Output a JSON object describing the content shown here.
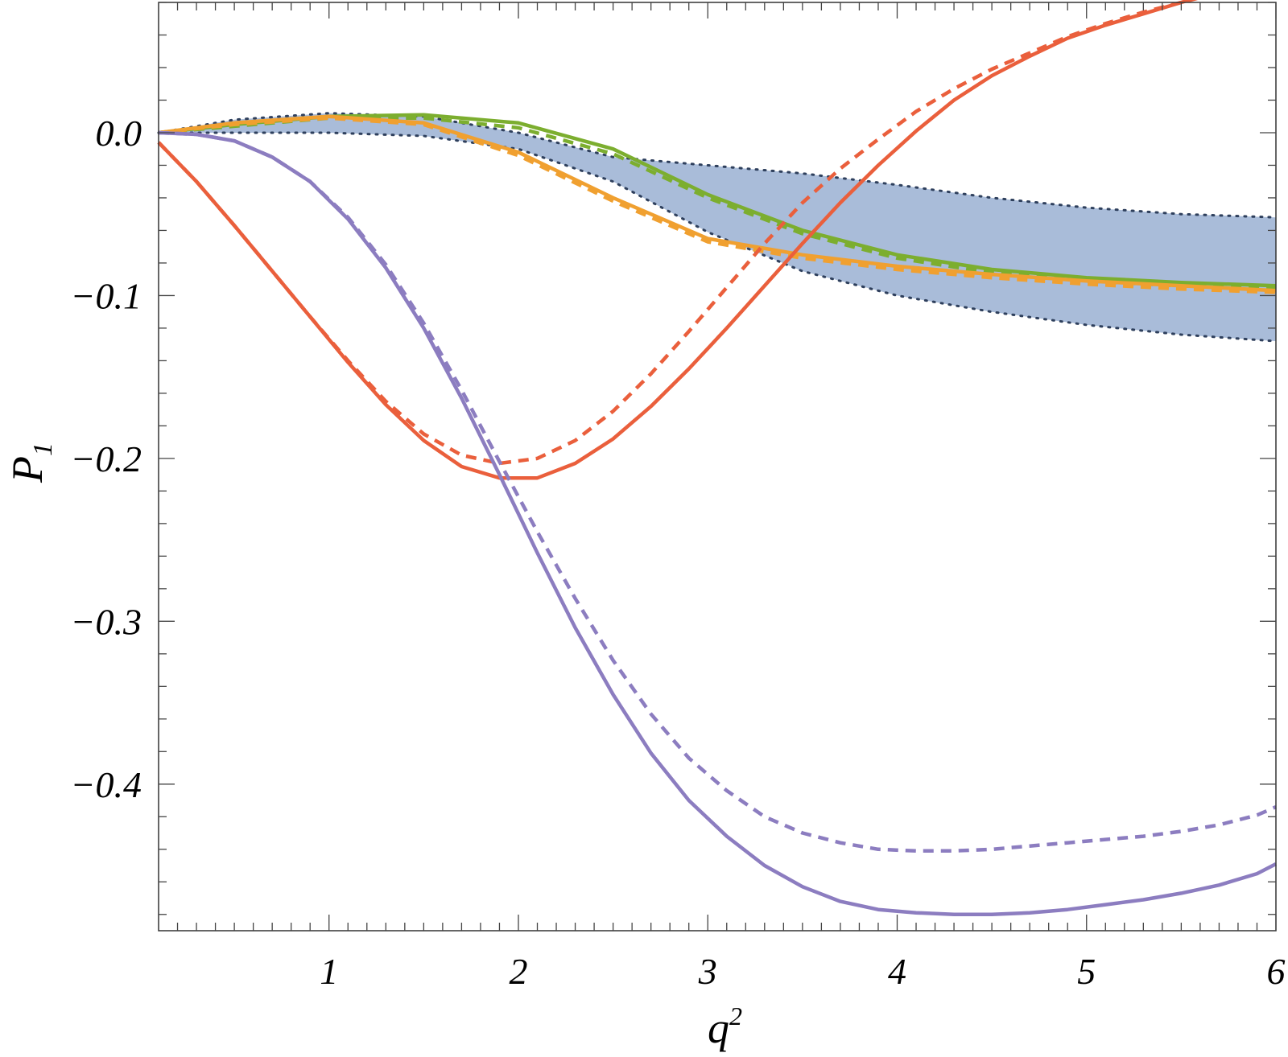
{
  "chart_data": {
    "type": "line",
    "xlabel": "q",
    "xlabel_sup": "2",
    "ylabel": "P",
    "ylabel_sub": "1",
    "xlim": [
      0.1,
      6
    ],
    "ylim": [
      -0.49,
      0.08
    ],
    "x_ticks": [
      1,
      2,
      3,
      4,
      5,
      6
    ],
    "x_tick_labels": [
      "1",
      "2",
      "3",
      "4",
      "5",
      "6"
    ],
    "y_ticks": [
      0.0,
      -0.1,
      -0.2,
      -0.3,
      -0.4
    ],
    "y_tick_labels": [
      "0.0",
      "−0.1",
      "−0.2",
      "−0.3",
      "−0.4"
    ],
    "grid": false,
    "band": {
      "color": "#a9bcd9",
      "edge_color": "#2e3f5c",
      "x": [
        0.1,
        0.5,
        1.0,
        1.5,
        2.0,
        2.5,
        3.0,
        3.5,
        4.0,
        4.5,
        5.0,
        5.5,
        6.0
      ],
      "lower": [
        0.0,
        0.0,
        0.0,
        -0.002,
        -0.01,
        -0.03,
        -0.061,
        -0.085,
        -0.1,
        -0.11,
        -0.118,
        -0.124,
        -0.128
      ],
      "upper": [
        0.0,
        0.008,
        0.012,
        0.01,
        0.0,
        -0.015,
        -0.02,
        -0.025,
        -0.032,
        -0.04,
        -0.046,
        -0.05,
        -0.052
      ]
    },
    "series": [
      {
        "color": "#7cae2f",
        "dash": "solid",
        "x": [
          0.1,
          0.5,
          1.0,
          1.5,
          2.0,
          2.5,
          3.0,
          3.5,
          4.0,
          4.5,
          5.0,
          5.5,
          6.0
        ],
        "y": [
          0.0,
          0.005,
          0.01,
          0.011,
          0.006,
          -0.01,
          -0.038,
          -0.06,
          -0.075,
          -0.084,
          -0.089,
          -0.092,
          -0.094
        ]
      },
      {
        "color": "#7cae2f",
        "dash": "dashed",
        "x": [
          0.1,
          0.5,
          1.0,
          1.5,
          2.0,
          2.5,
          3.0,
          3.5,
          4.0,
          4.5,
          5.0,
          5.5,
          6.0
        ],
        "y": [
          0.0,
          0.004,
          0.009,
          0.009,
          0.003,
          -0.013,
          -0.04,
          -0.062,
          -0.077,
          -0.086,
          -0.091,
          -0.094,
          -0.096
        ]
      },
      {
        "color": "#f0a030",
        "dash": "solid",
        "x": [
          0.1,
          0.5,
          1.0,
          1.5,
          2.0,
          2.5,
          3.0,
          3.5,
          4.0,
          4.5,
          5.0,
          5.5,
          6.0
        ],
        "y": [
          0.0,
          0.006,
          0.01,
          0.006,
          -0.012,
          -0.04,
          -0.065,
          -0.075,
          -0.082,
          -0.087,
          -0.091,
          -0.094,
          -0.097
        ]
      },
      {
        "color": "#f0a030",
        "dash": "dashed",
        "x": [
          0.1,
          0.5,
          1.0,
          1.5,
          2.0,
          2.5,
          3.0,
          3.5,
          4.0,
          4.5,
          5.0,
          5.5,
          6.0
        ],
        "y": [
          0.0,
          0.005,
          0.009,
          0.005,
          -0.014,
          -0.042,
          -0.067,
          -0.077,
          -0.084,
          -0.089,
          -0.093,
          -0.096,
          -0.098
        ]
      },
      {
        "color": "#ea5f3c",
        "dash": "solid",
        "x": [
          0.1,
          0.3,
          0.5,
          0.7,
          0.9,
          1.1,
          1.3,
          1.5,
          1.7,
          1.9,
          2.1,
          2.3,
          2.5,
          2.7,
          2.9,
          3.1,
          3.3,
          3.5,
          3.7,
          3.9,
          4.1,
          4.3,
          4.5,
          4.7,
          4.9,
          5.1,
          5.3,
          5.5,
          5.7,
          6.0
        ],
        "y": [
          -0.006,
          -0.03,
          -0.057,
          -0.085,
          -0.113,
          -0.141,
          -0.167,
          -0.189,
          -0.205,
          -0.212,
          -0.212,
          -0.203,
          -0.188,
          -0.168,
          -0.145,
          -0.12,
          -0.094,
          -0.068,
          -0.043,
          -0.02,
          0.001,
          0.02,
          0.035,
          0.047,
          0.058,
          0.066,
          0.073,
          0.08,
          0.087,
          0.092
        ]
      },
      {
        "color": "#ea5f3c",
        "dash": "dashed",
        "x": [
          0.1,
          0.3,
          0.5,
          0.7,
          0.9,
          1.1,
          1.3,
          1.5,
          1.7,
          1.9,
          2.1,
          2.3,
          2.5,
          2.7,
          2.9,
          3.1,
          3.3,
          3.5,
          3.7,
          3.9,
          4.1,
          4.3,
          4.5,
          4.7,
          4.9,
          5.1,
          5.3,
          5.5,
          5.7,
          6.0
        ],
        "y": [
          -0.006,
          -0.03,
          -0.057,
          -0.085,
          -0.113,
          -0.14,
          -0.165,
          -0.185,
          -0.198,
          -0.203,
          -0.2,
          -0.189,
          -0.171,
          -0.148,
          -0.122,
          -0.095,
          -0.068,
          -0.043,
          -0.022,
          -0.004,
          0.013,
          0.027,
          0.039,
          0.049,
          0.059,
          0.067,
          0.074,
          0.08,
          0.086,
          0.091
        ]
      },
      {
        "color": "#8c7dc0",
        "dash": "solid",
        "x": [
          0.1,
          0.3,
          0.5,
          0.7,
          0.9,
          1.1,
          1.3,
          1.5,
          1.7,
          1.9,
          2.1,
          2.3,
          2.5,
          2.7,
          2.9,
          3.1,
          3.3,
          3.5,
          3.7,
          3.9,
          4.1,
          4.3,
          4.5,
          4.7,
          4.9,
          5.1,
          5.3,
          5.5,
          5.7,
          5.9,
          6.0
        ],
        "y": [
          0.0,
          -0.001,
          -0.005,
          -0.015,
          -0.03,
          -0.053,
          -0.083,
          -0.12,
          -0.163,
          -0.21,
          -0.258,
          -0.304,
          -0.345,
          -0.381,
          -0.41,
          -0.432,
          -0.45,
          -0.463,
          -0.472,
          -0.477,
          -0.479,
          -0.48,
          -0.48,
          -0.479,
          -0.477,
          -0.474,
          -0.471,
          -0.467,
          -0.462,
          -0.455,
          -0.449
        ]
      },
      {
        "color": "#8c7dc0",
        "dash": "dashed",
        "x": [
          0.1,
          0.3,
          0.5,
          0.7,
          0.9,
          1.1,
          1.3,
          1.5,
          1.7,
          1.9,
          2.1,
          2.3,
          2.5,
          2.7,
          2.9,
          3.1,
          3.3,
          3.5,
          3.7,
          3.9,
          4.1,
          4.3,
          4.5,
          4.7,
          4.9,
          5.1,
          5.3,
          5.5,
          5.7,
          5.9,
          6.0
        ],
        "y": [
          0.0,
          -0.001,
          -0.005,
          -0.015,
          -0.03,
          -0.052,
          -0.081,
          -0.117,
          -0.158,
          -0.202,
          -0.245,
          -0.286,
          -0.324,
          -0.357,
          -0.384,
          -0.404,
          -0.42,
          -0.43,
          -0.436,
          -0.44,
          -0.441,
          -0.441,
          -0.44,
          -0.438,
          -0.436,
          -0.434,
          -0.432,
          -0.429,
          -0.425,
          -0.419,
          -0.414
        ]
      }
    ]
  }
}
